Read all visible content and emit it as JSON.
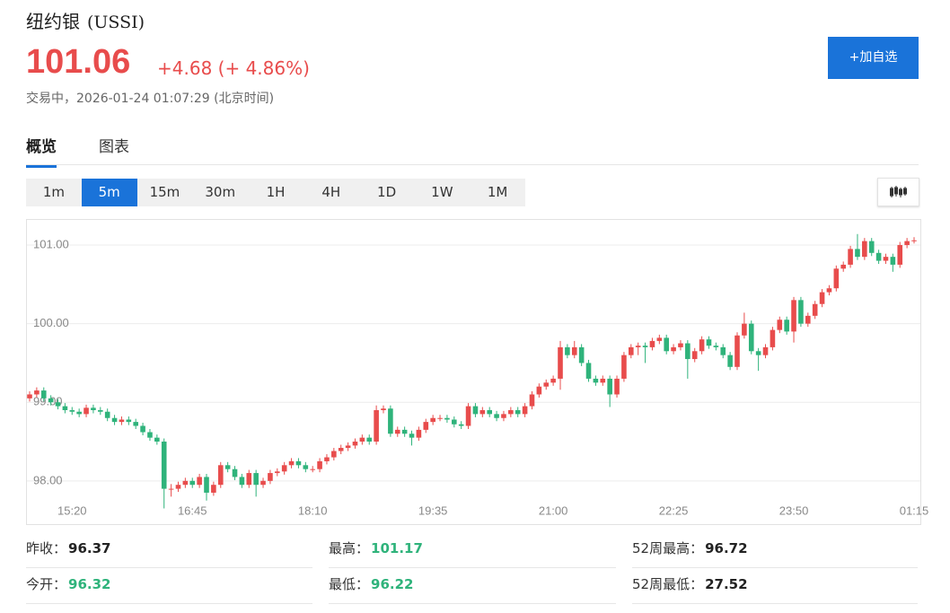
{
  "header": {
    "name": "纽约银",
    "symbol": "(USSI)",
    "price": "101.06",
    "change": "+4.68",
    "change_pct": "(+ 4.86%)",
    "status": "交易中，2026-01-24 01:07:29 (北京时间)"
  },
  "actions": {
    "watchlist": "+加自选"
  },
  "tabs": [
    "概览",
    "图表"
  ],
  "active_tab_index": 0,
  "intervals": [
    "1m",
    "5m",
    "15m",
    "30m",
    "1H",
    "4H",
    "1D",
    "1W",
    "1M"
  ],
  "active_interval_index": 1,
  "chart_data": {
    "type": "candlestick",
    "categories": [
      null,
      null,
      null,
      null,
      null,
      null,
      "15:20",
      null,
      null,
      null,
      null,
      null,
      null,
      null,
      null,
      null,
      null,
      null,
      null,
      null,
      null,
      null,
      null,
      "16:45",
      null,
      null,
      null,
      null,
      null,
      null,
      null,
      null,
      null,
      null,
      null,
      null,
      null,
      null,
      null,
      null,
      "18:10",
      null,
      null,
      null,
      null,
      null,
      null,
      null,
      null,
      null,
      null,
      null,
      null,
      null,
      null,
      null,
      null,
      "19:35",
      null,
      null,
      null,
      null,
      null,
      null,
      null,
      null,
      null,
      null,
      null,
      null,
      null,
      null,
      null,
      null,
      "21:00",
      null,
      null,
      null,
      null,
      null,
      null,
      null,
      null,
      null,
      null,
      null,
      null,
      null,
      null,
      null,
      null,
      "22:25",
      null,
      null,
      null,
      null,
      null,
      null,
      null,
      null,
      null,
      null,
      null,
      null,
      null,
      null,
      null,
      null,
      "23:50",
      null,
      null,
      null,
      null,
      null,
      null,
      null,
      null,
      null,
      null,
      null,
      null,
      null,
      null,
      null,
      null,
      "01:15"
    ],
    "open": [
      99.05,
      99.1,
      99.15,
      99.05,
      99.0,
      98.95,
      98.9,
      98.88,
      98.85,
      98.93,
      98.9,
      98.88,
      98.8,
      98.75,
      98.78,
      98.75,
      98.7,
      98.62,
      98.55,
      98.5,
      97.9,
      97.9,
      97.95,
      98.0,
      97.95,
      98.05,
      97.85,
      97.95,
      98.2,
      98.15,
      98.05,
      97.95,
      98.1,
      97.95,
      98.0,
      98.1,
      98.12,
      98.2,
      98.25,
      98.2,
      98.15,
      98.15,
      98.25,
      98.3,
      98.38,
      98.42,
      98.45,
      98.5,
      98.55,
      98.5,
      98.9,
      98.92,
      98.6,
      98.65,
      98.6,
      98.55,
      98.65,
      98.75,
      98.8,
      98.8,
      98.78,
      98.72,
      98.7,
      98.95,
      98.85,
      98.9,
      98.85,
      98.8,
      98.85,
      98.9,
      98.85,
      98.95,
      99.1,
      99.2,
      99.25,
      99.3,
      99.7,
      99.6,
      99.7,
      99.5,
      99.3,
      99.25,
      99.3,
      99.1,
      99.3,
      99.6,
      99.7,
      99.72,
      99.7,
      99.78,
      99.82,
      99.65,
      99.7,
      99.75,
      99.55,
      99.65,
      99.8,
      99.72,
      99.7,
      99.6,
      99.45,
      99.85,
      100.0,
      99.65,
      99.6,
      99.7,
      99.92,
      100.05,
      99.9,
      100.3,
      100.0,
      100.1,
      100.25,
      100.4,
      100.45,
      100.7,
      100.75,
      100.95,
      100.85,
      101.05,
      100.9,
      100.8,
      100.85,
      100.75,
      101.0,
      101.05
    ],
    "high": [
      99.14,
      99.19,
      99.19,
      99.09,
      99.04,
      98.99,
      98.94,
      98.92,
      98.97,
      98.97,
      98.94,
      98.92,
      98.84,
      98.82,
      98.82,
      98.79,
      98.74,
      98.66,
      98.59,
      98.54,
      97.96,
      97.99,
      98.04,
      98.04,
      98.09,
      98.09,
      97.99,
      98.24,
      98.24,
      98.19,
      98.09,
      98.14,
      98.14,
      98.04,
      98.14,
      98.16,
      98.24,
      98.29,
      98.29,
      98.24,
      98.19,
      98.29,
      98.34,
      98.42,
      98.46,
      98.49,
      98.54,
      98.59,
      98.59,
      98.96,
      98.96,
      98.96,
      98.69,
      98.69,
      98.64,
      98.69,
      98.79,
      98.84,
      98.84,
      98.84,
      98.82,
      98.76,
      98.99,
      98.99,
      98.94,
      98.94,
      98.89,
      98.89,
      98.94,
      98.94,
      98.99,
      99.14,
      99.24,
      99.29,
      99.34,
      99.78,
      99.74,
      99.78,
      99.74,
      99.54,
      99.34,
      99.34,
      99.34,
      99.34,
      99.64,
      99.74,
      99.76,
      99.76,
      99.82,
      99.86,
      99.86,
      99.74,
      99.79,
      99.79,
      99.69,
      99.84,
      99.84,
      99.76,
      99.74,
      99.64,
      99.89,
      100.14,
      100.04,
      99.69,
      99.74,
      99.96,
      100.09,
      100.09,
      100.34,
      100.34,
      100.14,
      100.29,
      100.44,
      100.49,
      100.74,
      100.79,
      100.99,
      101.14,
      101.09,
      101.09,
      100.94,
      100.89,
      100.89,
      101.04,
      101.09,
      101.1
    ],
    "low": [
      99.01,
      99.06,
      99.01,
      98.96,
      98.91,
      98.86,
      98.84,
      98.81,
      98.81,
      98.86,
      98.84,
      98.76,
      98.71,
      98.71,
      98.71,
      98.66,
      98.58,
      98.51,
      98.46,
      97.65,
      97.8,
      97.86,
      97.91,
      97.91,
      97.91,
      97.75,
      97.81,
      97.91,
      98.11,
      98.01,
      97.91,
      97.91,
      97.8,
      97.91,
      97.96,
      98.06,
      98.08,
      98.16,
      98.16,
      98.11,
      98.11,
      98.11,
      98.21,
      98.26,
      98.34,
      98.38,
      98.41,
      98.46,
      98.46,
      98.46,
      98.86,
      98.56,
      98.56,
      98.56,
      98.45,
      98.51,
      98.61,
      98.71,
      98.76,
      98.74,
      98.68,
      98.66,
      98.66,
      98.81,
      98.81,
      98.81,
      98.76,
      98.76,
      98.81,
      98.81,
      98.81,
      98.91,
      99.06,
      99.16,
      99.21,
      99.16,
      99.56,
      99.56,
      99.46,
      99.26,
      99.21,
      99.21,
      98.94,
      99.06,
      99.26,
      99.56,
      99.6,
      99.5,
      99.66,
      99.74,
      99.61,
      99.61,
      99.66,
      99.3,
      99.51,
      99.61,
      99.68,
      99.66,
      99.56,
      99.41,
      99.41,
      99.81,
      99.61,
      99.4,
      99.56,
      99.66,
      99.88,
      99.86,
      99.76,
      99.96,
      99.96,
      100.06,
      100.21,
      100.36,
      100.41,
      100.66,
      100.71,
      100.81,
      100.81,
      100.86,
      100.76,
      100.76,
      100.66,
      100.71,
      100.96,
      101.02
    ],
    "close": [
      99.1,
      99.15,
      99.05,
      99.0,
      98.95,
      98.9,
      98.88,
      98.85,
      98.93,
      98.9,
      98.88,
      98.8,
      98.75,
      98.78,
      98.75,
      98.7,
      98.62,
      98.55,
      98.5,
      97.9,
      97.9,
      97.95,
      98.0,
      97.95,
      98.05,
      97.85,
      97.95,
      98.2,
      98.15,
      98.05,
      97.95,
      98.1,
      97.95,
      98.0,
      98.1,
      98.12,
      98.2,
      98.25,
      98.2,
      98.15,
      98.15,
      98.25,
      98.3,
      98.38,
      98.42,
      98.45,
      98.5,
      98.55,
      98.5,
      98.9,
      98.92,
      98.6,
      98.65,
      98.6,
      98.55,
      98.65,
      98.75,
      98.8,
      98.8,
      98.78,
      98.72,
      98.7,
      98.95,
      98.85,
      98.9,
      98.85,
      98.8,
      98.85,
      98.9,
      98.85,
      98.95,
      99.1,
      99.2,
      99.25,
      99.3,
      99.7,
      99.6,
      99.7,
      99.5,
      99.3,
      99.25,
      99.3,
      99.1,
      99.3,
      99.6,
      99.7,
      99.72,
      99.7,
      99.78,
      99.82,
      99.65,
      99.7,
      99.75,
      99.55,
      99.65,
      99.8,
      99.72,
      99.7,
      99.6,
      99.45,
      99.85,
      100.0,
      99.65,
      99.6,
      99.7,
      99.92,
      100.05,
      99.9,
      100.3,
      100.0,
      100.1,
      100.25,
      100.4,
      100.45,
      100.7,
      100.75,
      100.95,
      100.85,
      101.05,
      100.9,
      100.8,
      100.85,
      100.75,
      101.0,
      101.05,
      101.06
    ],
    "up_color": "#e84c4c",
    "down_color": "#2fb37b",
    "ylim": [
      97.45,
      101.32
    ],
    "yticks": [
      {
        "value": 98,
        "label": "98.00"
      },
      {
        "value": 99,
        "label": "99.00"
      },
      {
        "value": 100,
        "label": "100.00"
      },
      {
        "value": 101,
        "label": "101.00"
      }
    ],
    "grid": true
  },
  "stats": [
    [
      {
        "label": "昨收：",
        "value": "96.37",
        "color": "#222222"
      },
      {
        "label": "最高：",
        "value": "101.17",
        "color": "#2fb37b"
      },
      {
        "label": "52周最高：",
        "value": "96.72",
        "color": "#222222"
      }
    ],
    [
      {
        "label": "今开：",
        "value": "96.32",
        "color": "#2fb37b"
      },
      {
        "label": "最低：",
        "value": "96.22",
        "color": "#2fb37b"
      },
      {
        "label": "52周最低：",
        "value": "27.52",
        "color": "#222222"
      }
    ]
  ]
}
